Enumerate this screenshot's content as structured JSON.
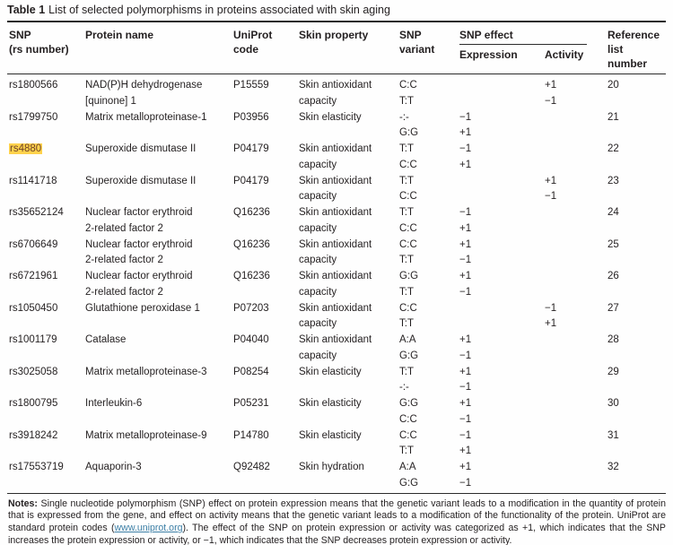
{
  "title": {
    "label": "Table 1",
    "text": "List of selected polymorphisms in proteins associated with skin aging"
  },
  "header": {
    "snp": [
      "SNP",
      "(rs number)"
    ],
    "protein": "Protein name",
    "uniprot": [
      "UniProt",
      "code"
    ],
    "property": "Skin property",
    "variant": [
      "SNP",
      "variant"
    ],
    "effect_group": "SNP effect",
    "expression": "Expression",
    "activity": "Activity",
    "reference": [
      "Reference",
      "list",
      "number"
    ]
  },
  "rows": [
    {
      "snp": "rs1800566",
      "highlighted": false,
      "protein_lines": [
        "NAD(P)H dehydrogenase",
        "[quinone] 1"
      ],
      "uniprot": "P15559",
      "property_lines": [
        "Skin antioxidant",
        "capacity"
      ],
      "variants": [
        {
          "variant": "C:C",
          "expression": "",
          "activity": "+1"
        },
        {
          "variant": "T:T",
          "expression": "",
          "activity": "−1"
        }
      ],
      "reference": "20"
    },
    {
      "snp": "rs1799750",
      "highlighted": false,
      "protein_lines": [
        "Matrix metalloproteinase-1"
      ],
      "uniprot": "P03956",
      "property_lines": [
        "Skin elasticity"
      ],
      "variants": [
        {
          "variant": "-:-",
          "expression": "−1",
          "activity": ""
        },
        {
          "variant": "G:G",
          "expression": "+1",
          "activity": ""
        }
      ],
      "reference": "21"
    },
    {
      "snp": "rs4880",
      "highlighted": true,
      "protein_lines": [
        "Superoxide dismutase II"
      ],
      "uniprot": "P04179",
      "property_lines": [
        "Skin antioxidant",
        "capacity"
      ],
      "variants": [
        {
          "variant": "T:T",
          "expression": "−1",
          "activity": ""
        },
        {
          "variant": "C:C",
          "expression": "+1",
          "activity": ""
        }
      ],
      "reference": "22"
    },
    {
      "snp": "rs1141718",
      "highlighted": false,
      "protein_lines": [
        "Superoxide dismutase II"
      ],
      "uniprot": "P04179",
      "property_lines": [
        "Skin antioxidant",
        "capacity"
      ],
      "variants": [
        {
          "variant": "T:T",
          "expression": "",
          "activity": "+1"
        },
        {
          "variant": "C:C",
          "expression": "",
          "activity": "−1"
        }
      ],
      "reference": "23"
    },
    {
      "snp": "rs35652124",
      "highlighted": false,
      "protein_lines": [
        "Nuclear factor erythroid",
        "2-related factor 2"
      ],
      "uniprot": "Q16236",
      "property_lines": [
        "Skin antioxidant",
        "capacity"
      ],
      "variants": [
        {
          "variant": "T:T",
          "expression": "−1",
          "activity": ""
        },
        {
          "variant": "C:C",
          "expression": "+1",
          "activity": ""
        }
      ],
      "reference": "24"
    },
    {
      "snp": "rs6706649",
      "highlighted": false,
      "protein_lines": [
        "Nuclear factor erythroid",
        "2-related factor 2"
      ],
      "uniprot": "Q16236",
      "property_lines": [
        "Skin antioxidant",
        "capacity"
      ],
      "variants": [
        {
          "variant": "C:C",
          "expression": "+1",
          "activity": ""
        },
        {
          "variant": "T:T",
          "expression": "−1",
          "activity": ""
        }
      ],
      "reference": "25"
    },
    {
      "snp": "rs6721961",
      "highlighted": false,
      "protein_lines": [
        "Nuclear factor erythroid",
        "2-related factor 2"
      ],
      "uniprot": "Q16236",
      "property_lines": [
        "Skin antioxidant",
        "capacity"
      ],
      "variants": [
        {
          "variant": "G:G",
          "expression": "+1",
          "activity": ""
        },
        {
          "variant": "T:T",
          "expression": "−1",
          "activity": ""
        }
      ],
      "reference": "26"
    },
    {
      "snp": "rs1050450",
      "highlighted": false,
      "protein_lines": [
        "Glutathione peroxidase 1"
      ],
      "uniprot": "P07203",
      "property_lines": [
        "Skin antioxidant",
        "capacity"
      ],
      "variants": [
        {
          "variant": "C:C",
          "expression": "",
          "activity": "−1"
        },
        {
          "variant": "T:T",
          "expression": "",
          "activity": "+1"
        }
      ],
      "reference": "27"
    },
    {
      "snp": "rs1001179",
      "highlighted": false,
      "protein_lines": [
        "Catalase"
      ],
      "uniprot": "P04040",
      "property_lines": [
        "Skin antioxidant",
        "capacity"
      ],
      "variants": [
        {
          "variant": "A:A",
          "expression": "+1",
          "activity": ""
        },
        {
          "variant": "G:G",
          "expression": "−1",
          "activity": ""
        }
      ],
      "reference": "28"
    },
    {
      "snp": "rs3025058",
      "highlighted": false,
      "protein_lines": [
        "Matrix metalloproteinase-3"
      ],
      "uniprot": "P08254",
      "property_lines": [
        "Skin elasticity"
      ],
      "variants": [
        {
          "variant": "T:T",
          "expression": "+1",
          "activity": ""
        },
        {
          "variant": "-:-",
          "expression": "−1",
          "activity": ""
        }
      ],
      "reference": "29"
    },
    {
      "snp": "rs1800795",
      "highlighted": false,
      "protein_lines": [
        "Interleukin-6"
      ],
      "uniprot": "P05231",
      "property_lines": [
        "Skin elasticity"
      ],
      "variants": [
        {
          "variant": "G:G",
          "expression": "+1",
          "activity": ""
        },
        {
          "variant": "C:C",
          "expression": "−1",
          "activity": ""
        }
      ],
      "reference": "30"
    },
    {
      "snp": "rs3918242",
      "highlighted": false,
      "protein_lines": [
        "Matrix metalloproteinase-9"
      ],
      "uniprot": "P14780",
      "property_lines": [
        "Skin elasticity"
      ],
      "variants": [
        {
          "variant": "C:C",
          "expression": "−1",
          "activity": ""
        },
        {
          "variant": "T:T",
          "expression": "+1",
          "activity": ""
        }
      ],
      "reference": "31"
    },
    {
      "snp": "rs17553719",
      "highlighted": false,
      "protein_lines": [
        "Aquaporin-3"
      ],
      "uniprot": "Q92482",
      "property_lines": [
        "Skin hydration"
      ],
      "variants": [
        {
          "variant": "A:A",
          "expression": "+1",
          "activity": ""
        },
        {
          "variant": "G:G",
          "expression": "−1",
          "activity": ""
        }
      ],
      "reference": "32"
    }
  ],
  "notes": {
    "label": "Notes:",
    "before_link": " Single nucleotide polymorphism (SNP) effect on protein expression means that the genetic variant leads to a modification in the quantity of protein that is expressed from the gene, and effect on activity means that the genetic variant leads to a modification of the functionality of the protein. UniProt are standard protein codes (",
    "link": "www.uniprot.org",
    "after_link": "). The effect of the SNP on protein expression or activity was categorized as +1, which indicates that the SNP increases the protein expression or activity, or −1, which indicates that the SNP decreases protein expression or activity."
  },
  "colors": {
    "text": "#231f20",
    "border": "#2b2b2b",
    "highlight_bg": "#ffd24d",
    "highlight_text": "#6d4228",
    "link": "#3d7fa6"
  }
}
